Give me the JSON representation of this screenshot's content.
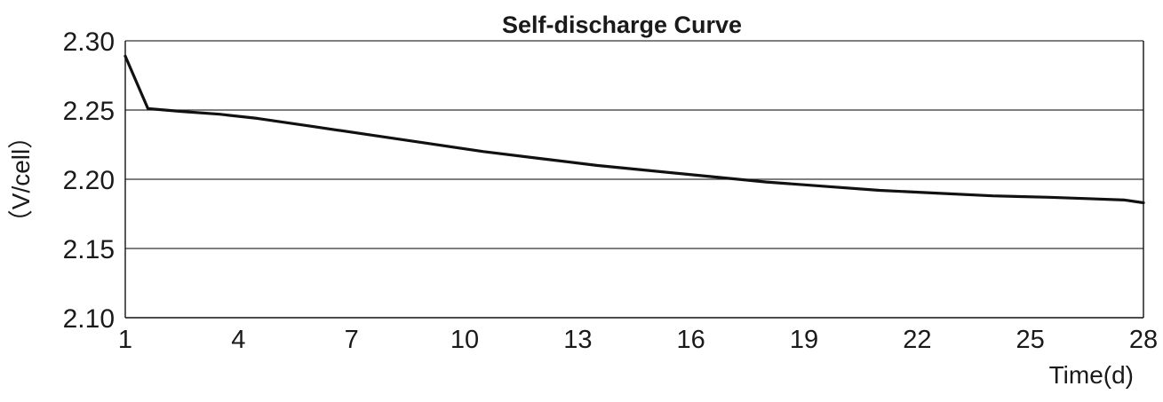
{
  "chart_data": {
    "type": "line",
    "title": "Self-discharge  Curve",
    "xlabel": "Time(d)",
    "ylabel": "（V/cell）",
    "xlim": [
      1,
      28
    ],
    "ylim": [
      2.1,
      2.3
    ],
    "x_ticks": [
      1,
      4,
      7,
      10,
      13,
      16,
      19,
      22,
      25,
      28
    ],
    "x_tick_labels": [
      "1",
      "4",
      "7",
      "10",
      "13",
      "16",
      "19",
      "22",
      "25",
      "28"
    ],
    "y_ticks": [
      2.1,
      2.15,
      2.2,
      2.25,
      2.3
    ],
    "y_tick_labels": [
      "2.10",
      "2.15",
      "2.20",
      "2.25",
      "2.30"
    ],
    "grid": "horizontal",
    "legend": "none",
    "line_color": "#111111",
    "grid_color": "#333333",
    "series": [
      {
        "x": [
          1,
          1.6,
          2.5,
          3.5,
          4.5,
          6,
          7.5,
          9,
          10.5,
          12,
          13.5,
          15,
          16.5,
          18,
          19.5,
          21,
          22.5,
          24,
          25.5,
          26.5,
          27.5,
          28
        ],
        "y": [
          2.289,
          2.251,
          2.249,
          2.247,
          2.244,
          2.238,
          2.232,
          2.226,
          2.22,
          2.215,
          2.21,
          2.206,
          2.202,
          2.198,
          2.195,
          2.192,
          2.19,
          2.188,
          2.187,
          2.186,
          2.185,
          2.183
        ]
      }
    ]
  }
}
